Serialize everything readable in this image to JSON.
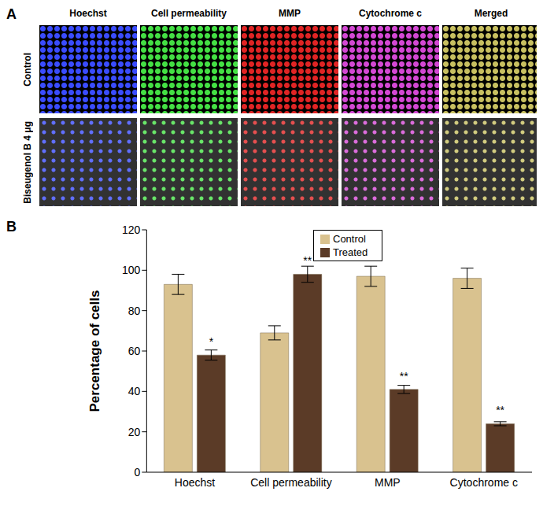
{
  "panel_a": {
    "label": "A",
    "columns": [
      "Hoechst",
      "Cell permeability",
      "MMP",
      "Cytochrome c",
      "Merged"
    ],
    "rows": [
      "Control",
      "Biseugenol B 4 μg"
    ]
  },
  "chart_data": {
    "label": "B",
    "type": "bar",
    "categories": [
      "Hoechst",
      "Cell permeability",
      "MMP",
      "Cytochrome c"
    ],
    "y_label": "Percentage of cells",
    "ylim": [
      0,
      120
    ],
    "yticks": [
      0,
      20,
      40,
      60,
      80,
      100,
      120
    ],
    "grid": false,
    "legend": "upper center",
    "series": [
      {
        "name": "Control",
        "color": "#d9c28f",
        "values": [
          93,
          69,
          97,
          96
        ],
        "errors": [
          5,
          3.5,
          5,
          5
        ]
      },
      {
        "name": "Treated",
        "color": "#5b3b27",
        "values": [
          58,
          98,
          41,
          24
        ],
        "errors": [
          2.5,
          4,
          2,
          1
        ],
        "significance": [
          "*",
          "**",
          "**",
          "**"
        ]
      }
    ]
  }
}
